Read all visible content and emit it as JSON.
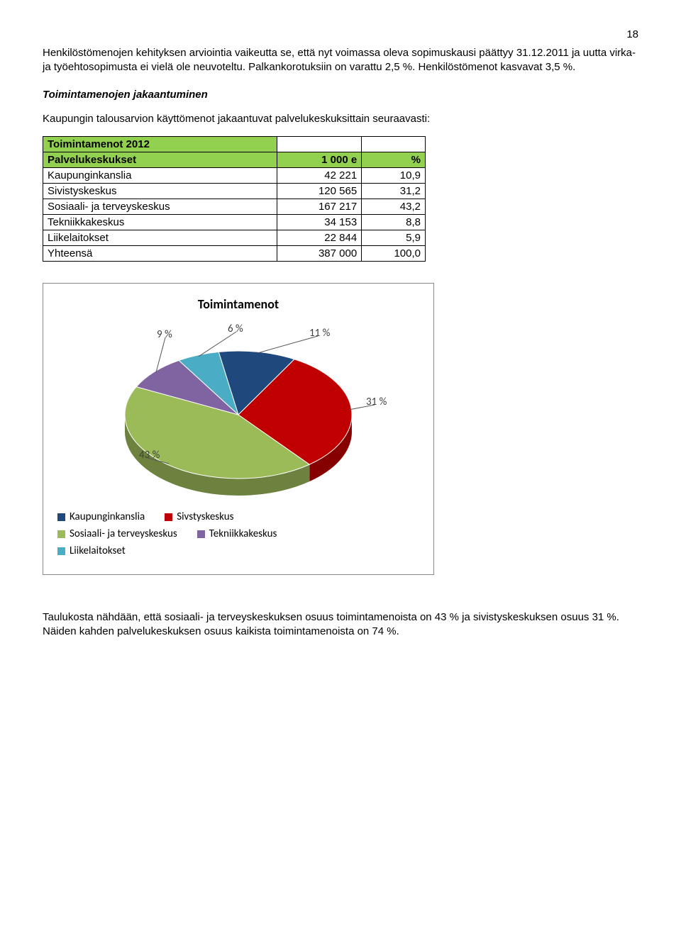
{
  "page_number": "18",
  "para1": "Henkilöstömenojen kehityksen arviointia vaikeutta se, että nyt voimassa oleva sopimuskausi päättyy 31.12.2011 ja uutta virka- ja työehtosopimusta ei vielä ole neuvoteltu. Palkankorotuksiin on varattu 2,5 %. Henkilöstömenot kasvavat 3,5 %.",
  "subheading": "Toimintamenojen jakaantuminen",
  "para2": "Kaupungin talousarvion käyttömenot jakaantuvat palvelukeskuksittain seuraavasti:",
  "table": {
    "title": "Toimintamenot 2012",
    "col_header_1": "Palvelukeskukset",
    "col_header_2": "1 000 e",
    "col_header_3": "%",
    "rows": [
      {
        "label": "Kaupunginkanslia",
        "val": "42 221",
        "pct": "10,9"
      },
      {
        "label": "Sivistyskeskus",
        "val": "120 565",
        "pct": "31,2"
      },
      {
        "label": "Sosiaali- ja terveyskeskus",
        "val": "167 217",
        "pct": "43,2"
      },
      {
        "label": "Tekniikkakeskus",
        "val": "34 153",
        "pct": "8,8"
      },
      {
        "label": "Liikelaitokset",
        "val": "22 844",
        "pct": "5,9"
      },
      {
        "label": "Yhteensä",
        "val": "387 000",
        "pct": "100,0"
      }
    ]
  },
  "chart": {
    "title": "Toimintamenot",
    "type": "pie-3d",
    "background_color": "#ffffff",
    "border_color": "#888888",
    "title_fontsize": 18,
    "label_fontsize": 15,
    "label_color": "#404040",
    "slices": [
      {
        "label": "Kaupunginkanslia",
        "value": 11,
        "display": "11 %",
        "color": "#1f497d"
      },
      {
        "label": "Sivstyskeskus",
        "value": 31,
        "display": "31 %",
        "color": "#c00000"
      },
      {
        "label": "Sosiaali- ja terveyskeskus",
        "value": 43,
        "display": "43 %",
        "color": "#9bbb59"
      },
      {
        "label": "Tekniikkakeskus",
        "value": 9,
        "display": "9 %",
        "color": "#8064a2"
      },
      {
        "label": "Liikelaitokset",
        "value": 6,
        "display": "6 %",
        "color": "#4bacc6"
      }
    ],
    "legend_rows": [
      [
        0,
        1
      ],
      [
        2,
        3
      ],
      [
        4
      ]
    ]
  },
  "para3": "Taulukosta nähdään, että sosiaali- ja terveyskeskuksen osuus toimintamenoista on 43 % ja sivistyskeskuksen osuus 31 %. Näiden kahden palvelukeskuksen osuus kaikista toimintamenoista on 74 %."
}
